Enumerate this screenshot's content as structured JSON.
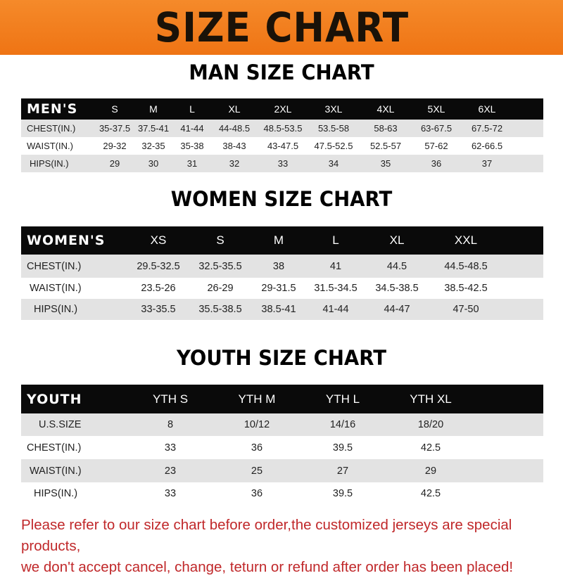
{
  "banner": {
    "title": "SIZE CHART"
  },
  "tables": [
    {
      "title": "MAN SIZE CHART",
      "header": "MEN'S",
      "sizes": [
        "S",
        "M",
        "L",
        "XL",
        "2XL",
        "3XL",
        "4XL",
        "5XL",
        "6XL"
      ],
      "rows": [
        {
          "label": "CHEST(IN.)",
          "values": [
            "35-37.5",
            "37.5-41",
            "41-44",
            "44-48.5",
            "48.5-53.5",
            "53.5-58",
            "58-63",
            "63-67.5",
            "67.5-72"
          ]
        },
        {
          "label": "WAIST(IN.)",
          "values": [
            "29-32",
            "32-35",
            "35-38",
            "38-43",
            "43-47.5",
            "47.5-52.5",
            "52.5-57",
            "57-62",
            "62-66.5"
          ]
        },
        {
          "label": "HIPS(IN.)",
          "values": [
            "29",
            "30",
            "31",
            "32",
            "33",
            "34",
            "35",
            "36",
            "37"
          ]
        }
      ]
    },
    {
      "title": "WOMEN SIZE CHART",
      "header": "WOMEN'S",
      "sizes": [
        "XS",
        "S",
        "M",
        "L",
        "XL",
        "XXL"
      ],
      "rows": [
        {
          "label": "CHEST(IN.)",
          "values": [
            "29.5-32.5",
            "32.5-35.5",
            "38",
            "41",
            "44.5",
            "44.5-48.5"
          ]
        },
        {
          "label": "WAIST(IN.)",
          "values": [
            "23.5-26",
            "26-29",
            "29-31.5",
            "31.5-34.5",
            "34.5-38.5",
            "38.5-42.5"
          ]
        },
        {
          "label": "HIPS(IN.)",
          "values": [
            "33-35.5",
            "35.5-38.5",
            "38.5-41",
            "41-44",
            "44-47",
            "47-50"
          ]
        }
      ]
    },
    {
      "title": "YOUTH SIZE CHART",
      "header": "YOUTH",
      "sizes": [
        "YTH S",
        "YTH M",
        "YTH L",
        "YTH XL"
      ],
      "rows": [
        {
          "label": "U.S.SIZE",
          "values": [
            "8",
            "10/12",
            "14/16",
            "18/20"
          ]
        },
        {
          "label": "CHEST(IN.)",
          "values": [
            "33",
            "36",
            "39.5",
            "42.5"
          ]
        },
        {
          "label": "WAIST(IN.)",
          "values": [
            "23",
            "25",
            "27",
            "29"
          ]
        },
        {
          "label": "HIPS(IN.)",
          "values": [
            "33",
            "36",
            "39.5",
            "42.5"
          ]
        }
      ]
    }
  ],
  "footer": {
    "line1": "Please refer to our size chart before order,the customized jerseys are special products,",
    "line2": "we don't accept cancel, change, teturn or refund after order has been placed!"
  },
  "colors": {
    "banner": "#f07a1c",
    "header_row": "#0a0a0a",
    "stripe": "#e3e3e3",
    "notice": "#c0282a"
  }
}
